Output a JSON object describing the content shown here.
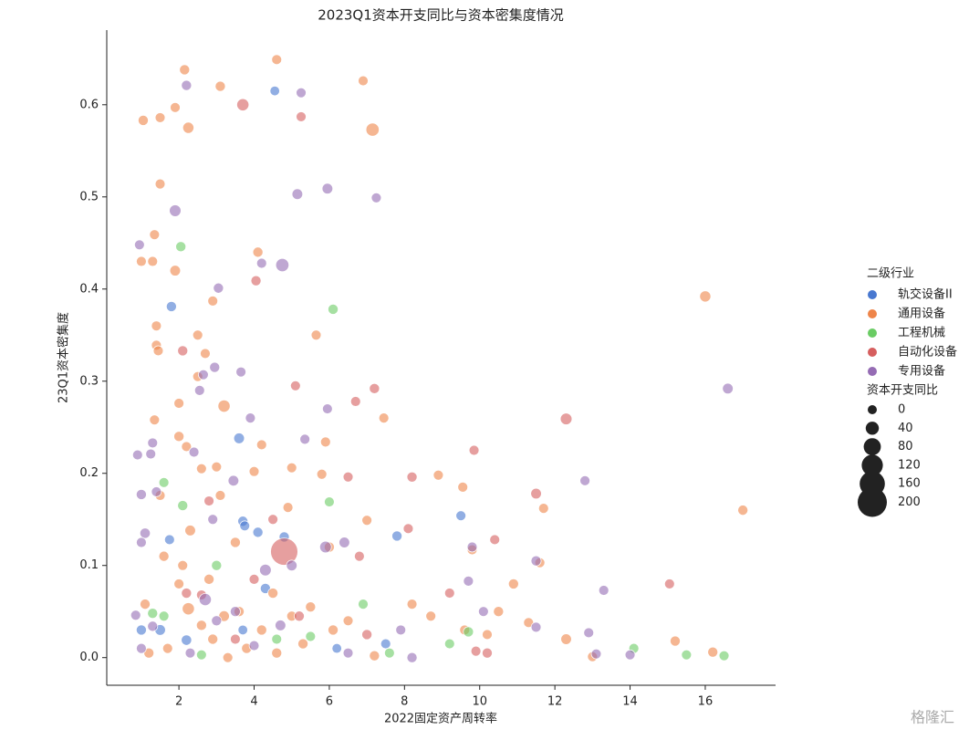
{
  "chart_data": {
    "type": "scatter",
    "title": "2023Q1资本开支同比与资本密集度情况",
    "xlabel": "2022固定资产周转率",
    "ylabel": "23Q1资本密集度",
    "xlim": [
      0.08,
      17.87
    ],
    "ylim": [
      -0.03,
      0.681
    ],
    "xticks": [
      2,
      4,
      6,
      8,
      10,
      12,
      14,
      16
    ],
    "yticks": [
      {
        "value": 0,
        "label": "0.0"
      },
      0.1,
      0.2,
      0.3,
      0.4,
      0.5,
      0.6
    ],
    "hue_title": "二级行业",
    "size_title": "资本开支同比",
    "size_legend": [
      0,
      40,
      80,
      120,
      160,
      200
    ],
    "watermark": "格隆汇",
    "series": [
      {
        "name": "轨交设备II",
        "color": "#4878d0",
        "x": [
          4.55,
          1.8,
          3.6,
          3.7,
          3.75,
          4.1,
          4.8,
          9.5,
          7.8,
          7.5,
          1.5,
          4.3,
          2.2,
          1.0,
          1.75,
          3.7,
          6.2
        ],
        "y": [
          0.615,
          0.381,
          0.238,
          0.148,
          0.143,
          0.136,
          0.131,
          0.154,
          0.132,
          0.015,
          0.03,
          0.075,
          0.019,
          0.03,
          0.128,
          0.03,
          0.01
        ],
        "sizes": [
          5,
          10,
          15,
          10,
          8,
          10,
          10,
          8,
          10,
          8,
          15,
          10,
          12,
          10,
          8,
          5,
          5
        ]
      },
      {
        "name": "通用设备",
        "color": "#ee854a",
        "x": [
          2.15,
          4.6,
          3.1,
          6.9,
          1.9,
          1.05,
          1.5,
          2.25,
          7.15,
          1.5,
          1.35,
          1.0,
          1.3,
          1.9,
          4.1,
          16.0,
          2.9,
          1.4,
          2.5,
          5.65,
          1.4,
          1.45,
          2.7,
          2.5,
          3.2,
          1.35,
          2.0,
          7.45,
          5.9,
          2.0,
          2.2,
          4.2,
          2.6,
          3.0,
          5.0,
          4.0,
          5.8,
          8.9,
          9.55,
          3.1,
          1.5,
          7.0,
          11.7,
          2.3,
          1.6,
          2.1,
          3.5,
          4.9,
          6.0,
          9.8,
          11.6,
          10.9,
          2.8,
          4.5,
          2.25,
          3.2,
          1.1,
          5.5,
          8.2,
          10.5,
          12.3,
          15.2,
          16.2,
          17.0,
          3.8,
          2.9,
          1.7,
          4.6,
          6.1,
          7.2,
          9.6,
          10.2,
          13.0,
          1.2,
          2.6,
          3.3,
          5.3,
          6.5,
          8.7,
          11.3,
          4.2,
          5.0,
          3.6,
          2.0
        ],
        "y": [
          0.638,
          0.649,
          0.62,
          0.626,
          0.597,
          0.583,
          0.586,
          0.575,
          0.573,
          0.514,
          0.459,
          0.43,
          0.43,
          0.42,
          0.44,
          0.392,
          0.387,
          0.36,
          0.35,
          0.35,
          0.339,
          0.333,
          0.33,
          0.305,
          0.273,
          0.258,
          0.276,
          0.26,
          0.234,
          0.24,
          0.229,
          0.231,
          0.205,
          0.207,
          0.206,
          0.202,
          0.199,
          0.198,
          0.185,
          0.176,
          0.176,
          0.149,
          0.162,
          0.138,
          0.11,
          0.1,
          0.125,
          0.163,
          0.12,
          0.117,
          0.103,
          0.08,
          0.085,
          0.07,
          0.053,
          0.045,
          0.058,
          0.055,
          0.058,
          0.05,
          0.02,
          0.018,
          0.006,
          0.16,
          0.01,
          0.02,
          0.01,
          0.005,
          0.03,
          0.002,
          0.03,
          0.025,
          0.001,
          0.005,
          0.035,
          0.0,
          0.015,
          0.04,
          0.045,
          0.038,
          0.03,
          0.045,
          0.05,
          0.08
        ],
        "sizes": [
          10,
          8,
          10,
          8,
          8,
          10,
          8,
          20,
          40,
          8,
          8,
          8,
          8,
          15,
          10,
          20,
          8,
          8,
          8,
          8,
          8,
          8,
          8,
          8,
          30,
          8,
          8,
          8,
          8,
          10,
          8,
          8,
          8,
          8,
          8,
          8,
          8,
          8,
          8,
          8,
          8,
          8,
          8,
          15,
          10,
          8,
          10,
          8,
          10,
          8,
          8,
          10,
          10,
          10,
          30,
          15,
          10,
          10,
          8,
          10,
          15,
          10,
          10,
          10,
          10,
          10,
          8,
          10,
          10,
          10,
          8,
          8,
          8,
          10,
          10,
          8,
          10,
          8,
          8,
          8,
          10,
          8,
          10,
          8
        ]
      },
      {
        "name": "工程机械",
        "color": "#6acc64",
        "x": [
          2.05,
          6.1,
          1.6,
          2.1,
          6.0,
          1.3,
          1.6,
          6.9,
          9.7,
          9.2,
          14.1,
          15.5,
          16.5,
          2.6,
          4.6,
          7.6,
          3.0,
          5.5
        ],
        "y": [
          0.446,
          0.378,
          0.19,
          0.165,
          0.169,
          0.048,
          0.045,
          0.058,
          0.028,
          0.015,
          0.01,
          0.003,
          0.002,
          0.003,
          0.02,
          0.005,
          0.1,
          0.023
        ],
        "sizes": [
          10,
          10,
          8,
          10,
          8,
          10,
          8,
          8,
          10,
          8,
          8,
          8,
          8,
          8,
          8,
          8,
          10,
          8
        ]
      },
      {
        "name": "自动化设备",
        "color": "#d65f5f",
        "x": [
          3.7,
          5.25,
          4.05,
          2.1,
          7.2,
          5.1,
          6.7,
          12.3,
          9.85,
          11.5,
          8.2,
          6.5,
          4.8,
          15.05,
          10.4,
          8.1,
          6.8,
          2.6,
          2.2,
          4.0,
          9.2,
          7.0,
          10.2,
          9.9,
          5.2,
          3.5,
          2.8,
          4.5
        ],
        "y": [
          0.6,
          0.587,
          0.409,
          0.333,
          0.292,
          0.295,
          0.278,
          0.259,
          0.225,
          0.178,
          0.196,
          0.196,
          0.115,
          0.08,
          0.128,
          0.14,
          0.11,
          0.068,
          0.07,
          0.085,
          0.07,
          0.025,
          0.005,
          0.007,
          0.045,
          0.02,
          0.17,
          0.15
        ],
        "sizes": [
          30,
          8,
          10,
          10,
          10,
          8,
          8,
          25,
          8,
          15,
          10,
          8,
          180,
          8,
          8,
          8,
          8,
          8,
          10,
          8,
          8,
          10,
          10,
          8,
          10,
          8,
          8,
          8
        ]
      },
      {
        "name": "专用设备",
        "color": "#956cb4",
        "x": [
          2.2,
          5.25,
          1.9,
          5.15,
          5.95,
          7.25,
          0.95,
          4.75,
          4.2,
          3.05,
          3.65,
          2.95,
          2.65,
          2.55,
          16.6,
          5.95,
          3.9,
          5.35,
          1.3,
          0.9,
          1.25,
          2.4,
          12.8,
          3.45,
          1.4,
          1.0,
          1.1,
          1.0,
          2.9,
          5.9,
          6.4,
          4.3,
          5.0,
          11.5,
          13.3,
          9.7,
          10.1,
          2.7,
          3.5,
          4.7,
          0.85,
          1.3,
          12.9,
          11.5,
          14.0,
          13.1,
          8.2,
          6.5,
          2.3,
          1.0,
          3.0,
          4.0,
          7.9,
          9.8
        ],
        "y": [
          0.621,
          0.613,
          0.485,
          0.503,
          0.509,
          0.499,
          0.448,
          0.426,
          0.428,
          0.401,
          0.31,
          0.315,
          0.307,
          0.29,
          0.292,
          0.27,
          0.26,
          0.237,
          0.233,
          0.22,
          0.221,
          0.223,
          0.192,
          0.192,
          0.18,
          0.177,
          0.135,
          0.125,
          0.15,
          0.12,
          0.125,
          0.095,
          0.1,
          0.105,
          0.073,
          0.083,
          0.05,
          0.063,
          0.05,
          0.035,
          0.046,
          0.034,
          0.027,
          0.033,
          0.003,
          0.004,
          0.0,
          0.005,
          0.005,
          0.01,
          0.04,
          0.013,
          0.03,
          0.12
        ],
        "sizes": [
          10,
          8,
          25,
          15,
          15,
          8,
          8,
          40,
          8,
          10,
          8,
          10,
          8,
          8,
          15,
          8,
          8,
          8,
          8,
          8,
          8,
          8,
          8,
          15,
          8,
          10,
          12,
          8,
          8,
          25,
          15,
          25,
          15,
          10,
          8,
          8,
          8,
          30,
          10,
          15,
          8,
          10,
          8,
          8,
          8,
          8,
          10,
          8,
          8,
          8,
          10,
          8,
          8,
          8
        ]
      }
    ]
  }
}
